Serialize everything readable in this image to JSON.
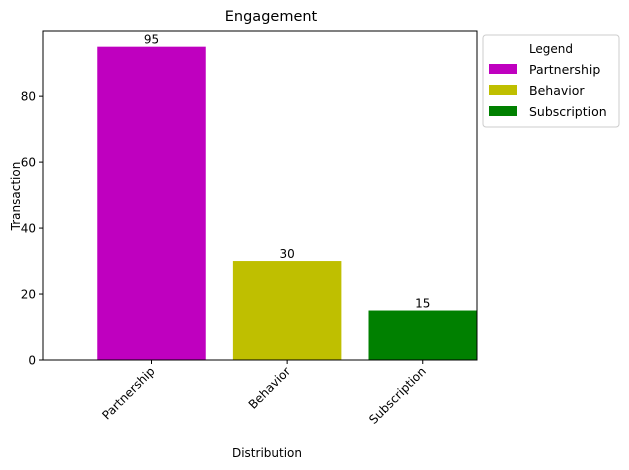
{
  "chart_data": {
    "type": "bar",
    "title": "Engagement",
    "xlabel": "Distribution",
    "ylabel": "Transaction",
    "categories": [
      "Partnership",
      "Behavior",
      "Subscription"
    ],
    "values": [
      95,
      30,
      15
    ],
    "data_labels": [
      "95",
      "30",
      "15"
    ],
    "colors": [
      "#bf00bf",
      "#bfbf00",
      "#008000"
    ],
    "ylim": [
      0,
      99.75
    ],
    "yticks": [
      0,
      20,
      40,
      60,
      80
    ],
    "grid": false,
    "legend": {
      "title": "Legend",
      "placement": "outside-top-right",
      "entries": [
        "Partnership",
        "Behavior",
        "Subscription"
      ]
    }
  }
}
